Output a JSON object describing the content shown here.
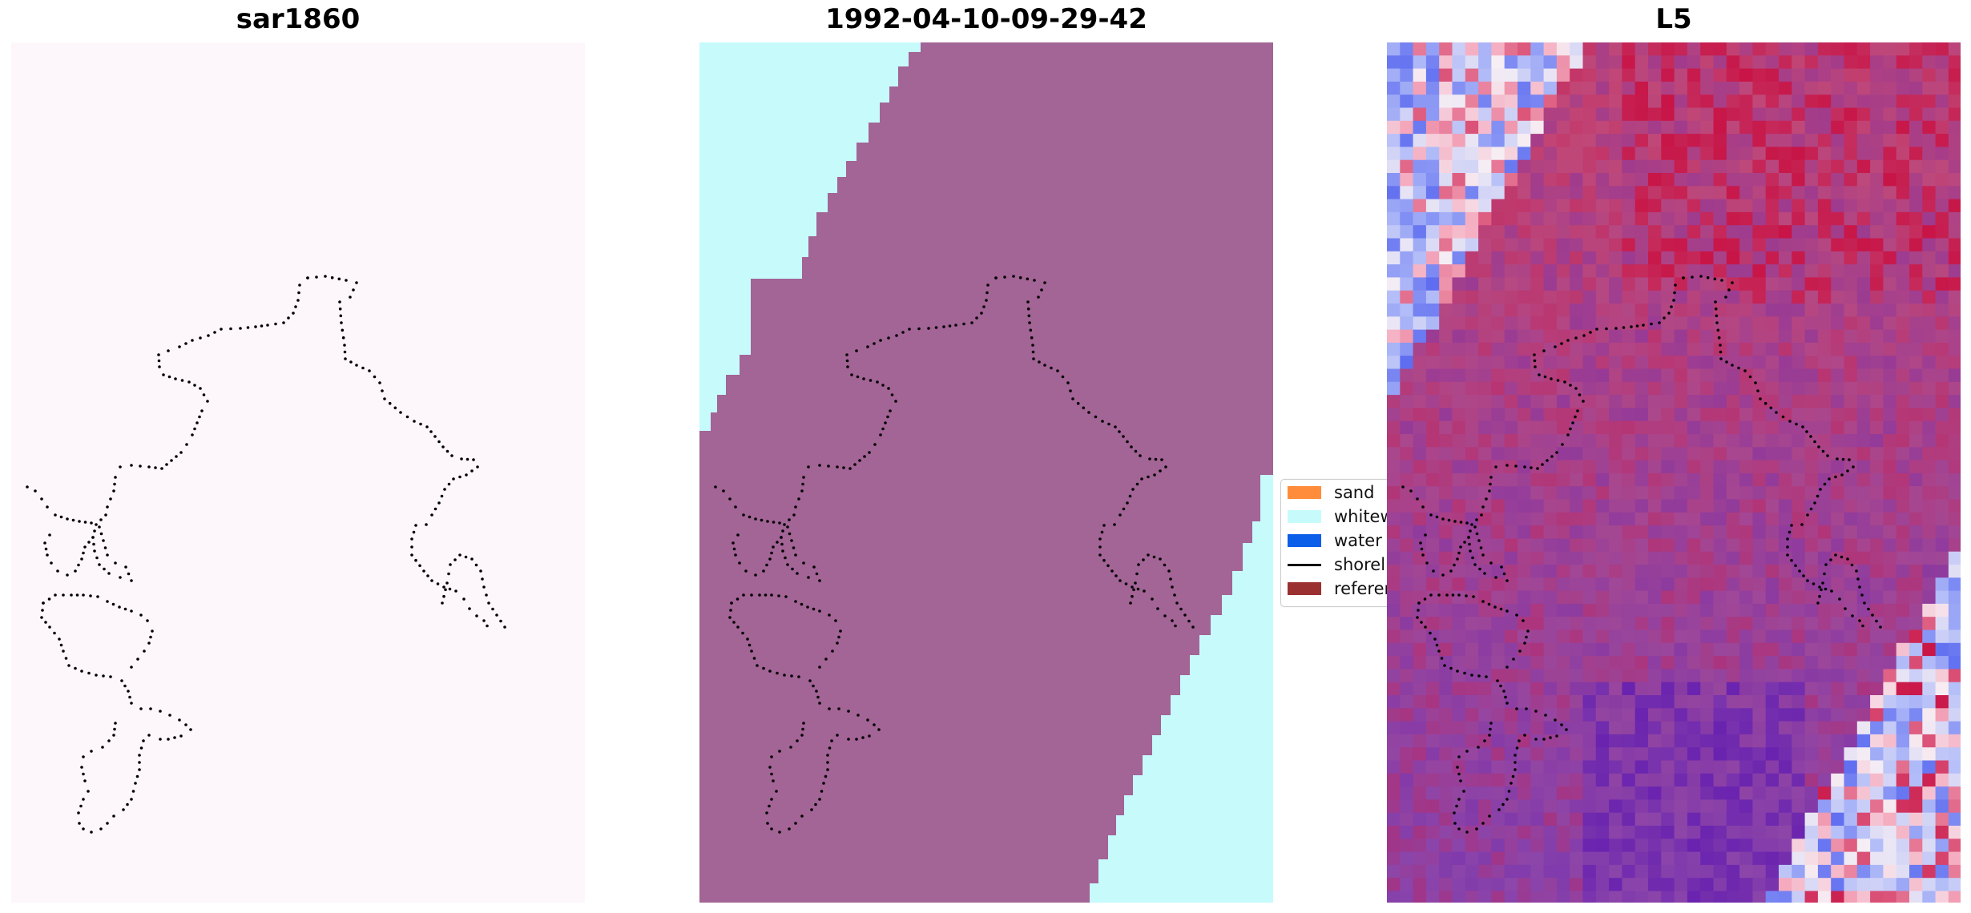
{
  "panels": [
    {
      "title": "sar1860"
    },
    {
      "title": "1992-04-10-09-29-42"
    },
    {
      "title": "L5"
    }
  ],
  "legend": {
    "items": [
      {
        "label": "sand",
        "color": "#ff8c3a",
        "kind": "patch"
      },
      {
        "label": "whitewater",
        "color": "#c7fbfb",
        "kind": "patch"
      },
      {
        "label": "water",
        "color": "#0b5fe8",
        "kind": "patch"
      },
      {
        "label": "shoreline",
        "color": "#000000",
        "kind": "line"
      },
      {
        "label": "reference shoreline",
        "color": "#9b3030",
        "kind": "patch"
      }
    ]
  },
  "colors": {
    "sar_background": "#fdf7fc",
    "sand_class": "#a36496",
    "whitewater_class": "#c7fbfb",
    "l5_high": "#c8002f",
    "l5_mid": "#9a4f9a",
    "l5_low": "#7a3ad6",
    "l5_white": "#f4f0f4",
    "l5_blue": "#5c6ff0",
    "shoreline_dots": "#000000"
  }
}
